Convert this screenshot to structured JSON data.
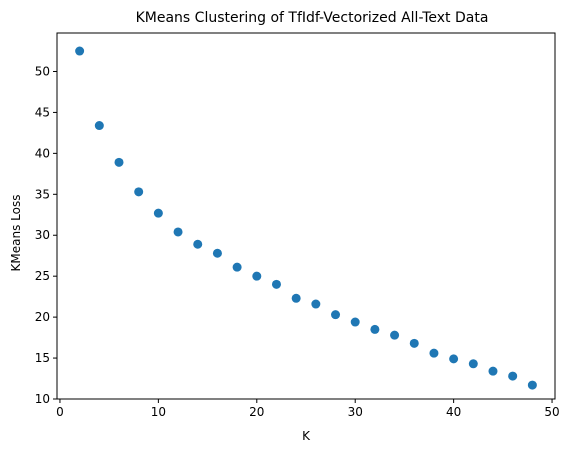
{
  "chart_data": {
    "type": "scatter",
    "title": "KMeans Clustering of TfIdf-Vectorized All-Text Data",
    "xlabel": "K",
    "ylabel": "KMeans Loss",
    "xlim": [
      -0.3,
      50.3
    ],
    "ylim": [
      10.0,
      54.7
    ],
    "xticks": [
      0,
      10,
      20,
      30,
      40,
      50
    ],
    "yticks": [
      10,
      15,
      20,
      25,
      30,
      35,
      40,
      45,
      50
    ],
    "grid": false,
    "series": [
      {
        "color": "#1f77b4",
        "x": [
          2,
          4,
          6,
          8,
          10,
          12,
          14,
          16,
          18,
          20,
          22,
          24,
          26,
          28,
          30,
          32,
          34,
          36,
          38,
          40,
          42,
          44,
          46,
          48
        ],
        "y": [
          52.5,
          43.4,
          38.9,
          35.3,
          32.7,
          30.4,
          28.9,
          27.8,
          26.1,
          25.0,
          24.0,
          22.3,
          21.6,
          20.3,
          19.4,
          18.5,
          17.8,
          16.8,
          15.6,
          14.9,
          14.3,
          13.4,
          12.8,
          11.7
        ]
      }
    ]
  }
}
